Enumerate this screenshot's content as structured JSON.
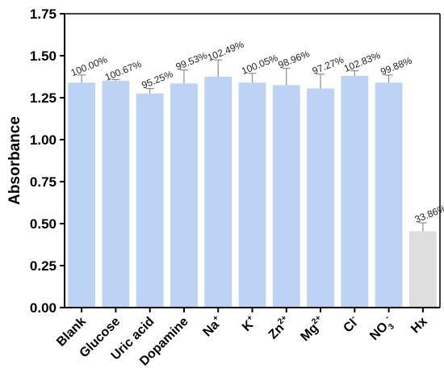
{
  "chart_data": {
    "type": "bar",
    "ylabel": "Absorbance",
    "xlabel": "",
    "ylim": [
      0,
      1.75
    ],
    "yticks": [
      "0.00",
      "0.25",
      "0.50",
      "0.75",
      "1.00",
      "1.25",
      "1.50",
      "1.75"
    ],
    "grid": false,
    "categories": [
      {
        "base": "Blank",
        "sup": "",
        "sub": ""
      },
      {
        "base": "Glucose",
        "sup": "",
        "sub": ""
      },
      {
        "base": "Uric acid",
        "sup": "",
        "sub": ""
      },
      {
        "base": "Dopamine",
        "sup": "",
        "sub": ""
      },
      {
        "base": "Na",
        "sup": "+",
        "sub": ""
      },
      {
        "base": "K",
        "sup": "+",
        "sub": ""
      },
      {
        "base": "Zn",
        "sup": "2+",
        "sub": ""
      },
      {
        "base": "Mg",
        "sup": "2+",
        "sub": ""
      },
      {
        "base": "Cl",
        "sup": "-",
        "sub": ""
      },
      {
        "base": "NO",
        "sup": "-",
        "sub": "3"
      },
      {
        "base": "Hx",
        "sup": "",
        "sub": ""
      }
    ],
    "values": [
      1.34,
      1.35,
      1.275,
      1.335,
      1.375,
      1.34,
      1.325,
      1.305,
      1.38,
      1.34,
      0.455
    ],
    "errors": [
      0.045,
      0.008,
      0.03,
      0.08,
      0.1,
      0.055,
      0.1,
      0.085,
      0.03,
      0.045,
      0.05
    ],
    "data_labels": [
      "100.00%",
      "100.67%",
      "95.25%",
      "99.53%",
      "102.49%",
      "100.05%",
      "98.96%",
      "97.27%",
      "102.83%",
      "99.88%",
      "33.86%"
    ],
    "bar_colors": [
      "#bcd3f5",
      "#bcd3f5",
      "#bcd3f5",
      "#bcd3f5",
      "#bcd3f5",
      "#bcd3f5",
      "#bcd3f5",
      "#bcd3f5",
      "#bcd3f5",
      "#bcd3f5",
      "#dedede"
    ],
    "error_color": "#8c8c8c"
  }
}
